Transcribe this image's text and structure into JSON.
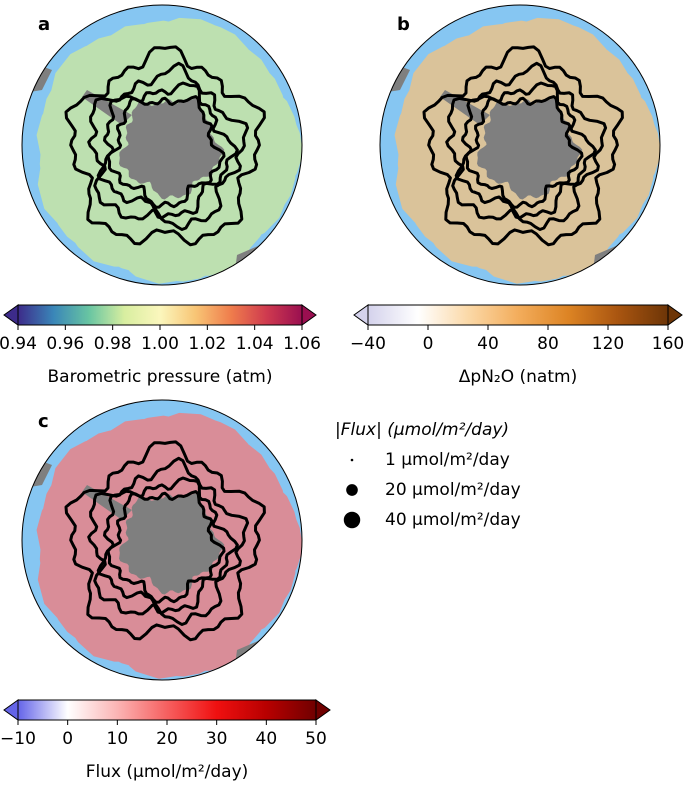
{
  "panels": [
    {
      "label": "a",
      "colorbar": {
        "label": "Barometric pressure (atm)",
        "lim": [
          0.94,
          1.06
        ],
        "ticks": [
          0.94,
          0.96,
          0.98,
          {
            "value": 1,
            "label": "1.00"
          },
          1.02,
          1.04,
          1.06
        ],
        "colors": [
          "#3d2b8a",
          "#3a86b8",
          "#68c5a2",
          "#d8eea0",
          "#fbf7bd",
          "#f8c575",
          "#ef7d4c",
          "#cf3a4f",
          "#9a0f50"
        ]
      }
    },
    {
      "label": "b",
      "colorbar": {
        "label": "ΔpN₂O (natm)",
        "lim": [
          -40,
          160
        ],
        "ticks": [
          {
            "value": -40,
            "label": "−40"
          },
          0,
          40,
          80,
          120,
          160
        ],
        "colors": [
          "#d4d2ec",
          "#ffffff",
          "#fbd9a8",
          "#f3ad5c",
          "#dd8424",
          "#a95510",
          "#6d3507"
        ]
      }
    },
    {
      "label": "c",
      "colorbar": {
        "label": "Flux (μmol/m²/day)",
        "lim": [
          -10,
          50
        ],
        "ticks": [
          {
            "value": -10,
            "label": "−10"
          },
          0,
          10,
          20,
          30,
          40,
          50
        ],
        "colors": [
          "#6464e8",
          "#ffffff",
          "#fbb4b4",
          "#f66060",
          "#f01010",
          "#b80000",
          "#700000"
        ]
      }
    }
  ],
  "legend": {
    "title": "|Flux| (μmol/m²/day)",
    "entries": [
      {
        "label": "1 μmol/m²/day",
        "value": 1
      },
      {
        "label": "20 μmol/m²/day",
        "value": 20
      },
      {
        "label": "40 μmol/m²/day",
        "value": 40
      }
    ]
  }
}
